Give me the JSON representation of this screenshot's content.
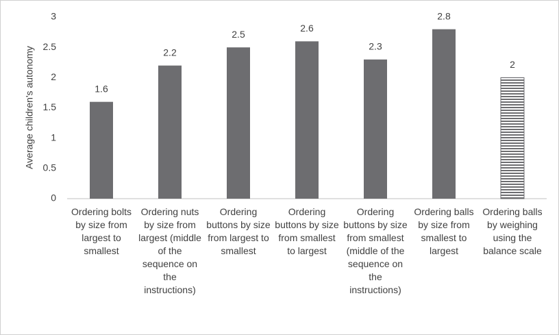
{
  "chart_data": {
    "type": "bar",
    "y_label": "Average children's autonomy",
    "categories": [
      "Ordering bolts  by size from largest to smallest",
      "Ordering nuts by size from largest (middle of the sequence on the instructions)",
      "Ordering buttons by size from largest to smallest",
      "Ordering buttons by size from smallest to largest",
      "Ordering buttons by size from smallest (middle of the sequence on the instructions)",
      "Ordering balls by size from smallest to largest",
      "Ordering balls by weighing using the balance scale"
    ],
    "values": [
      1.6,
      2.2,
      2.5,
      2.6,
      2.3,
      2.8,
      2
    ],
    "bar_fill": [
      "solid",
      "solid",
      "solid",
      "solid",
      "solid",
      "solid",
      "horizontal-stripes"
    ],
    "color": "#6d6d70",
    "ylim": [
      0,
      3
    ],
    "yticks": [
      0,
      0.5,
      1,
      1.5,
      2,
      2.5,
      3
    ],
    "grid": false,
    "data_labels": true
  }
}
